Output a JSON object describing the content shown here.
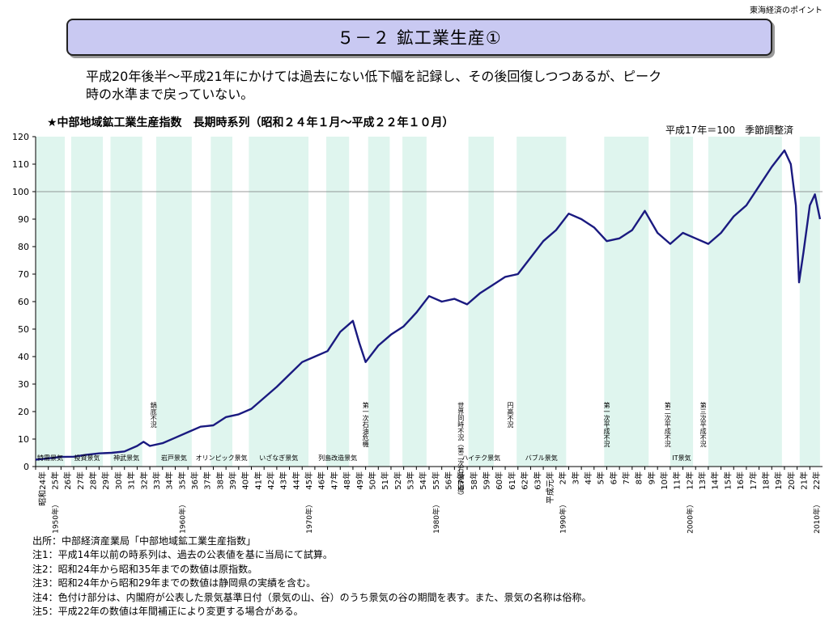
{
  "header": {
    "brand": "東海経済のポイント",
    "title": "５－２ 鉱工業生産①"
  },
  "lead_text": [
    "平成20年後半～平成21年にかけては過去にない低下幅を記録し、その後回復しつつあるが、ピーク",
    "時の水準まで戻っていない。"
  ],
  "chart_heading": "★中部地域鉱工業生産指数　長期時系列（昭和２４年１月～平成２２年１０月）",
  "chart_note": "平成17年＝100　季節調整済",
  "chart_data": {
    "type": "line",
    "title": "★中部地域鉱工業生産指数　長期時系列（昭和２４年１月～平成２２年１０月）",
    "ylim": [
      0,
      120
    ],
    "yticks": [
      0,
      10,
      20,
      30,
      40,
      50,
      60,
      70,
      80,
      90,
      100,
      110,
      120
    ],
    "reference_line": 100,
    "line_color": "#1a1a80",
    "band_color": "#dff5ee",
    "x_labels": [
      "昭和24年",
      "25年",
      "26年",
      "27年",
      "28年",
      "29年",
      "30年",
      "31年",
      "32年",
      "33年",
      "34年",
      "35年",
      "36年",
      "37年",
      "38年",
      "39年",
      "40年",
      "41年",
      "42年",
      "43年",
      "44年",
      "45年",
      "46年",
      "47年",
      "48年",
      "49年",
      "50年",
      "51年",
      "52年",
      "53年",
      "54年",
      "55年",
      "56年",
      "57年",
      "58年",
      "59年",
      "60年",
      "61年",
      "62年",
      "63年",
      "平成元年",
      "2年",
      "3年",
      "4年",
      "5年",
      "6年",
      "7年",
      "8年",
      "9年",
      "10年",
      "11年",
      "12年",
      "13年",
      "14年",
      "15年",
      "16年",
      "17年",
      "18年",
      "19年",
      "20年",
      "21年",
      "22年"
    ],
    "decade_markers": [
      {
        "year": 1950,
        "label": "（1950年）"
      },
      {
        "year": 1960,
        "label": "（1960年）"
      },
      {
        "year": 1970,
        "label": "（1970年）"
      },
      {
        "year": 1980,
        "label": "（1980年）"
      },
      {
        "year": 1990,
        "label": "（1990年）"
      },
      {
        "year": 2000,
        "label": "（2000年）"
      },
      {
        "year": 2010,
        "label": "（2010年）"
      }
    ],
    "start_year": 1949,
    "end_year": 2010.8,
    "series": [
      {
        "values": [
          [
            1949.0,
            2.5
          ],
          [
            1950.0,
            3.0
          ],
          [
            1951.0,
            3.5
          ],
          [
            1952.0,
            3.6
          ],
          [
            1953.0,
            4.3
          ],
          [
            1954.0,
            4.8
          ],
          [
            1955.0,
            5.0
          ],
          [
            1956.0,
            5.5
          ],
          [
            1957.0,
            7.5
          ],
          [
            1957.5,
            9.0
          ],
          [
            1958.0,
            7.5
          ],
          [
            1959.0,
            8.5
          ],
          [
            1960.0,
            10.5
          ],
          [
            1961.0,
            12.5
          ],
          [
            1962.0,
            14.5
          ],
          [
            1963.0,
            15.0
          ],
          [
            1964.0,
            18.0
          ],
          [
            1965.0,
            19.0
          ],
          [
            1966.0,
            21.0
          ],
          [
            1967.0,
            25.0
          ],
          [
            1968.0,
            29.0
          ],
          [
            1969.0,
            33.5
          ],
          [
            1970.0,
            38.0
          ],
          [
            1971.0,
            40.0
          ],
          [
            1972.0,
            42.0
          ],
          [
            1973.0,
            49.0
          ],
          [
            1974.0,
            53.0
          ],
          [
            1974.5,
            45.0
          ],
          [
            1975.0,
            38.0
          ],
          [
            1976.0,
            44.0
          ],
          [
            1977.0,
            48.0
          ],
          [
            1978.0,
            51.0
          ],
          [
            1979.0,
            56.0
          ],
          [
            1980.0,
            62.0
          ],
          [
            1981.0,
            60.0
          ],
          [
            1982.0,
            61.0
          ],
          [
            1983.0,
            59.0
          ],
          [
            1984.0,
            63.0
          ],
          [
            1985.0,
            66.0
          ],
          [
            1986.0,
            69.0
          ],
          [
            1987.0,
            70.0
          ],
          [
            1988.0,
            76.0
          ],
          [
            1989.0,
            82.0
          ],
          [
            1990.0,
            86.0
          ],
          [
            1991.0,
            92.0
          ],
          [
            1992.0,
            90.0
          ],
          [
            1993.0,
            87.0
          ],
          [
            1994.0,
            82.0
          ],
          [
            1995.0,
            83.0
          ],
          [
            1996.0,
            86.0
          ],
          [
            1997.0,
            93.0
          ],
          [
            1998.0,
            85.0
          ],
          [
            1999.0,
            81.0
          ],
          [
            2000.0,
            85.0
          ],
          [
            2001.0,
            83.0
          ],
          [
            2002.0,
            81.0
          ],
          [
            2003.0,
            85.0
          ],
          [
            2004.0,
            91.0
          ],
          [
            2005.0,
            95.0
          ],
          [
            2006.0,
            102.0
          ],
          [
            2007.0,
            109.0
          ],
          [
            2008.0,
            115.0
          ],
          [
            2008.5,
            110.0
          ],
          [
            2008.9,
            95.0
          ],
          [
            2009.15,
            67.0
          ],
          [
            2009.5,
            78.0
          ],
          [
            2010.0,
            95.0
          ],
          [
            2010.4,
            99.0
          ],
          [
            2010.8,
            90.0
          ]
        ]
      }
    ],
    "bands": [
      {
        "from": 1949.0,
        "to": 1951.3,
        "label": "特需景気"
      },
      {
        "from": 1951.8,
        "to": 1954.3,
        "label": "投資景気"
      },
      {
        "from": 1954.9,
        "to": 1957.4,
        "label": "神武景気"
      },
      {
        "from": 1958.5,
        "to": 1961.3,
        "label": "岩戸景気"
      },
      {
        "from": 1962.8,
        "to": 1964.5,
        "label": "オリンピック景気"
      },
      {
        "from": 1965.8,
        "to": 1970.5,
        "label": "いざなぎ景気"
      },
      {
        "from": 1971.9,
        "to": 1973.7,
        "label": "列島改造景気"
      },
      {
        "from": 1975.2,
        "to": 1976.9,
        "label": ""
      },
      {
        "from": 1977.9,
        "to": 1979.8,
        "label": ""
      },
      {
        "from": 1983.1,
        "to": 1985.1,
        "label": "ハイテク景気"
      },
      {
        "from": 1986.9,
        "to": 1990.8,
        "label": "バブル景気"
      },
      {
        "from": 1993.8,
        "to": 1997.3,
        "label": ""
      },
      {
        "from": 1999.0,
        "to": 2000.8,
        "label": "IT景気"
      },
      {
        "from": 2002.0,
        "to": 2007.8,
        "label": ""
      },
      {
        "from": 2009.2,
        "to": 2010.8,
        "label": ""
      }
    ],
    "troughs": [
      {
        "year": 1958.3,
        "label": "鍋底不況"
      },
      {
        "year": 1975.0,
        "label": "第一次石油危機"
      },
      {
        "year": 1982.5,
        "label": "世界同時不況（第二次石油危機）"
      },
      {
        "year": 1986.4,
        "label": "円高不況"
      },
      {
        "year": 1994.0,
        "label": "第一次平成不況"
      },
      {
        "year": 1998.8,
        "label": "第二次平成不況"
      },
      {
        "year": 2001.6,
        "label": "第三次平成不況"
      }
    ]
  },
  "notes": [
    "出所：中部経済産業局「中部地域鉱工業生産指数」",
    "注1：平成14年以前の時系列は、過去の公表値を基に当局にて試算。",
    "注2：昭和24年から昭和35年までの数値は原指数。",
    "注3：昭和24年から昭和29年までの数値は静岡県の実績を含む。",
    "注4：色付け部分は、内閣府が公表した景気基準日付（景気の山、谷）のうち景気の谷の期間を表す。また、景気の名称は俗称。",
    "注5：平成22年の数値は年間補正により変更する場合がある。"
  ]
}
